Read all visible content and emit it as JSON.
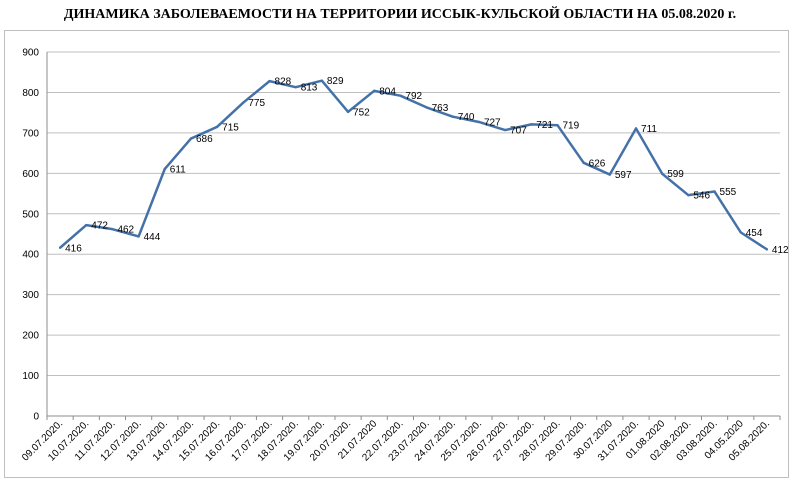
{
  "chart_data": {
    "type": "line",
    "title": "ДИНАМИКА ЗАБОЛЕВАЕМОСТИ НА ТЕРРИТОРИИ ИССЫК-КУЛЬСКОЙ ОБЛАСТИ НА 05.08.2020 г.",
    "xlabel": "",
    "ylabel": "",
    "ylim": [
      0,
      900
    ],
    "yticks": [
      0,
      100,
      200,
      300,
      400,
      500,
      600,
      700,
      800,
      900
    ],
    "grid": true,
    "legend": "none",
    "categories": [
      "09.07.2020.",
      "10.07.2020.",
      "11.07.2020.",
      "12.07.2020.",
      "13.07.2020.",
      "14.07.2020.",
      "15.07.2020.",
      "16.07.2020.",
      "17.07.2020.",
      "18.07.2020.",
      "19.07.2020.",
      "20.07.2020.",
      "21.07.2020",
      "22.07.2020.",
      "23.07.2020.",
      "24.07.2020.",
      "25.07.2020.",
      "26.07.2020.",
      "27.07.2020.",
      "28.07.2020.",
      "29.07.2020.",
      "30.07.2020",
      "31.07.2020.",
      "01.08.2020",
      "02.08.2020.",
      "03.08.2020.",
      "04.05.2020",
      "05.08.2020."
    ],
    "series": [
      {
        "values": [
          416,
          472,
          462,
          444,
          611,
          686,
          715,
          775,
          828,
          813,
          829,
          752,
          804,
          792,
          763,
          740,
          727,
          707,
          721,
          719,
          626,
          597,
          711,
          599,
          546,
          555,
          454,
          412
        ],
        "color": "#4472a8"
      }
    ]
  }
}
